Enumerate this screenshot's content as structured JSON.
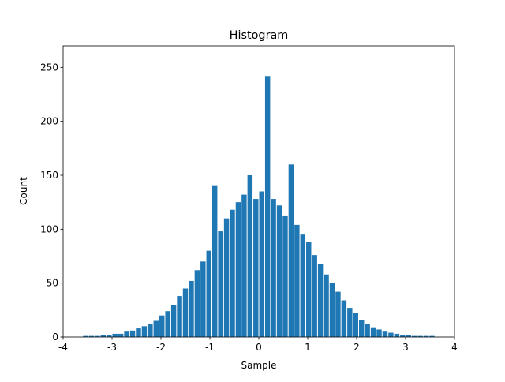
{
  "chart_data": {
    "type": "histogram",
    "title": "Histogram",
    "xlabel": "Sample",
    "ylabel": "Count",
    "bins": [
      -3.6,
      -3.48,
      -3.36,
      -3.24,
      -3.12,
      -3.0,
      -2.88,
      -2.76,
      -2.64,
      -2.52,
      -2.4,
      -2.28,
      -2.16,
      -2.04,
      -1.92,
      -1.8,
      -1.68,
      -1.56,
      -1.44,
      -1.32,
      -1.2,
      -1.08,
      -0.96,
      -0.84,
      -0.72,
      -0.6,
      -0.48,
      -0.36,
      -0.24,
      -0.12,
      0,
      0.12,
      0.24,
      0.36,
      0.48,
      0.6,
      0.72,
      0.84,
      0.96,
      1.08,
      1.2,
      1.32,
      1.44,
      1.56,
      1.68,
      1.8,
      1.92,
      2.04,
      2.16,
      2.28,
      2.4,
      2.52,
      2.64,
      2.76,
      2.88,
      3.0,
      3.12,
      3.24,
      3.36,
      3.48,
      3.6
    ],
    "values": [
      1,
      1,
      1,
      2,
      2,
      3,
      3,
      5,
      6,
      8,
      10,
      12,
      15,
      20,
      24,
      30,
      38,
      45,
      52,
      62,
      70,
      80,
      140,
      98,
      110,
      118,
      125,
      132,
      150,
      128,
      135,
      242,
      128,
      122,
      112,
      160,
      104,
      95,
      88,
      76,
      68,
      58,
      50,
      42,
      34,
      27,
      22,
      16,
      12,
      9,
      7,
      5,
      4,
      3,
      2,
      2,
      1,
      1,
      1,
      1
    ],
    "color": "#1f77b4",
    "xlim": [
      -4,
      4
    ],
    "xticks": [
      -4,
      -3,
      -2,
      -1,
      0,
      1,
      2,
      3,
      4
    ],
    "ylim": [
      0,
      270
    ],
    "yticks": [
      0,
      50,
      100,
      150,
      200,
      250
    ]
  }
}
